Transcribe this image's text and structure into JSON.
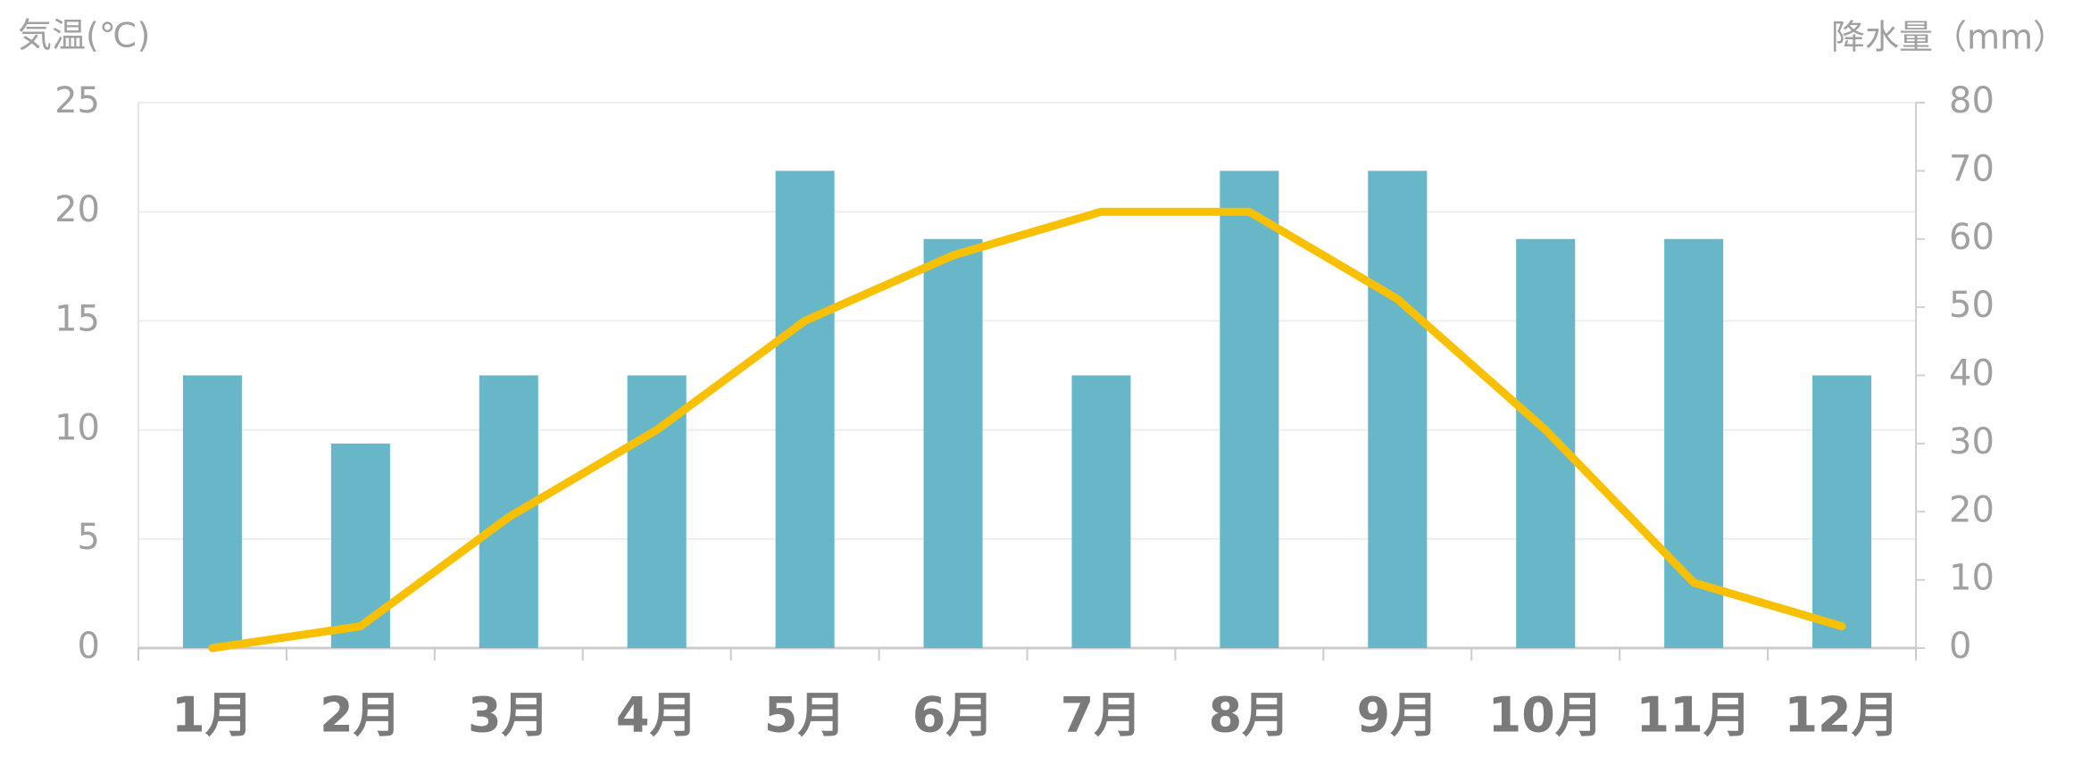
{
  "chart_data": {
    "type": "bar",
    "y_label": "気温(℃)",
    "y2_label": "降水量（mm）",
    "categories": [
      "1月",
      "2月",
      "3月",
      "4月",
      "5月",
      "6月",
      "7月",
      "8月",
      "9月",
      "10月",
      "11月",
      "12月"
    ],
    "series": [
      {
        "name": "降水量",
        "type": "bar",
        "axis": "y2",
        "color": "#67b7c9",
        "values": [
          40,
          30,
          40,
          40,
          70,
          60,
          40,
          70,
          70,
          60,
          60,
          40
        ]
      },
      {
        "name": "気温",
        "type": "line",
        "axis": "y",
        "color": "#f9c000",
        "values": [
          0,
          1,
          6,
          10,
          15,
          18,
          20,
          20,
          16,
          10,
          3,
          1
        ]
      }
    ],
    "ylim": [
      0,
      25
    ],
    "yticks": [
      0,
      5,
      10,
      15,
      20,
      25
    ],
    "y2lim": [
      0,
      80
    ],
    "y2ticks": [
      0,
      10,
      20,
      30,
      40,
      50,
      60,
      70,
      80
    ],
    "grid": true
  }
}
